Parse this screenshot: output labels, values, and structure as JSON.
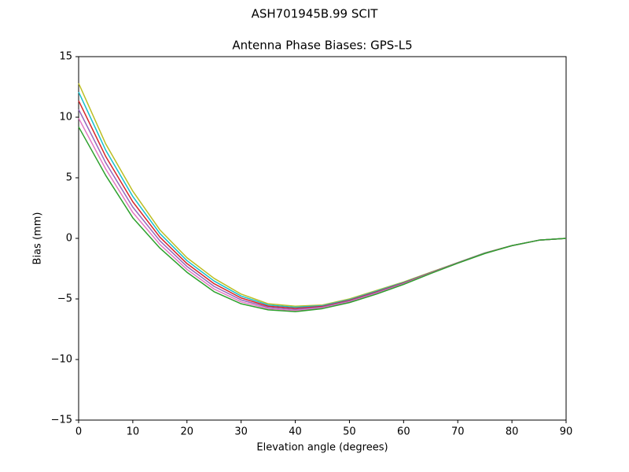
{
  "chart_data": {
    "type": "line",
    "suptitle": "ASH701945B.99   SCIT",
    "title": "Antenna Phase Biases: GPS-L5",
    "xlabel": "Elevation angle (degrees)",
    "ylabel": "Bias (mm)",
    "x": [
      0,
      5,
      10,
      15,
      20,
      25,
      30,
      35,
      40,
      45,
      50,
      55,
      60,
      65,
      70,
      75,
      80,
      85,
      90
    ],
    "xlim": [
      0,
      90
    ],
    "xticks": [
      0,
      10,
      20,
      30,
      40,
      50,
      60,
      70,
      80,
      90
    ],
    "ylim": [
      -15,
      15
    ],
    "yticks": [
      {
        "value": -15,
        "label": "−15"
      },
      {
        "value": -10,
        "label": "−10"
      },
      {
        "value": -5,
        "label": "−5"
      },
      0,
      5,
      10,
      15
    ],
    "grid": false,
    "series": [
      {
        "color": "#bcbd22",
        "values": [
          12.8,
          7.8,
          3.9,
          0.7,
          -1.6,
          -3.3,
          -4.6,
          -5.4,
          -5.6,
          -5.5,
          -5.0,
          -4.3,
          -3.6,
          -2.8,
          -2.0,
          -1.2,
          -0.6,
          -0.15,
          0
        ]
      },
      {
        "color": "#17becf",
        "values": [
          12.08,
          7.28,
          3.46,
          0.4,
          -1.84,
          -3.52,
          -4.76,
          -5.5,
          -5.69,
          -5.56,
          -5.06,
          -4.36,
          -3.64,
          -2.82,
          -2.01,
          -1.21,
          -0.6,
          -0.15,
          0
        ]
      },
      {
        "color": "#d62728",
        "values": [
          11.36,
          6.76,
          3.02,
          0.1,
          -2.08,
          -3.74,
          -4.92,
          -5.6,
          -5.78,
          -5.62,
          -5.12,
          -4.42,
          -3.68,
          -2.84,
          -2.02,
          -1.22,
          -0.6,
          -0.15,
          0
        ]
      },
      {
        "color": "#9467bd",
        "values": [
          10.64,
          6.24,
          2.58,
          -0.2,
          -2.32,
          -3.96,
          -5.08,
          -5.7,
          -5.87,
          -5.68,
          -5.18,
          -4.48,
          -3.72,
          -2.86,
          -2.03,
          -1.23,
          -0.6,
          -0.15,
          0
        ]
      },
      {
        "color": "#e377c2",
        "values": [
          9.92,
          5.72,
          2.14,
          -0.5,
          -2.56,
          -4.18,
          -5.24,
          -5.8,
          -5.96,
          -5.74,
          -5.24,
          -4.54,
          -3.76,
          -2.88,
          -2.04,
          -1.24,
          -0.6,
          -0.15,
          0
        ]
      },
      {
        "color": "#2ca02c",
        "values": [
          9.2,
          5.2,
          1.7,
          -0.8,
          -2.8,
          -4.4,
          -5.4,
          -5.9,
          -6.05,
          -5.8,
          -5.3,
          -4.6,
          -3.8,
          -2.9,
          -2.05,
          -1.25,
          -0.6,
          -0.15,
          0
        ]
      }
    ]
  }
}
